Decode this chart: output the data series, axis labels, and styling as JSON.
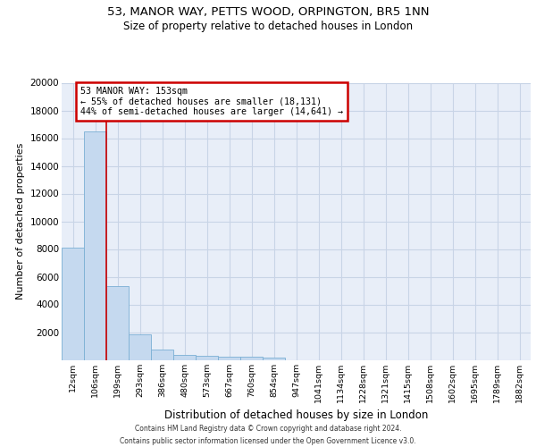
{
  "title1": "53, MANOR WAY, PETTS WOOD, ORPINGTON, BR5 1NN",
  "title2": "Size of property relative to detached houses in London",
  "xlabel": "Distribution of detached houses by size in London",
  "ylabel": "Number of detached properties",
  "bar_labels": [
    "12sqm",
    "106sqm",
    "199sqm",
    "293sqm",
    "386sqm",
    "480sqm",
    "573sqm",
    "667sqm",
    "760sqm",
    "854sqm",
    "947sqm",
    "1041sqm",
    "1134sqm",
    "1228sqm",
    "1321sqm",
    "1415sqm",
    "1508sqm",
    "1602sqm",
    "1695sqm",
    "1789sqm",
    "1882sqm"
  ],
  "bar_values": [
    8100,
    16500,
    5300,
    1850,
    750,
    380,
    300,
    250,
    220,
    160,
    0,
    0,
    0,
    0,
    0,
    0,
    0,
    0,
    0,
    0,
    0
  ],
  "bar_color": "#c5d9ef",
  "bar_edge_color": "#7bafd4",
  "grid_color": "#c8d4e6",
  "background_color": "#e8eef8",
  "red_line_x": 1.5,
  "annotation_title": "53 MANOR WAY: 153sqm",
  "annotation_line1": "← 55% of detached houses are smaller (18,131)",
  "annotation_line2": "44% of semi-detached houses are larger (14,641) →",
  "annotation_box_color": "#ffffff",
  "annotation_border_color": "#cc0000",
  "red_line_color": "#cc0000",
  "footer1": "Contains HM Land Registry data © Crown copyright and database right 2024.",
  "footer2": "Contains public sector information licensed under the Open Government Licence v3.0.",
  "ylim": [
    0,
    20000
  ],
  "yticks": [
    0,
    2000,
    4000,
    6000,
    8000,
    10000,
    12000,
    14000,
    16000,
    18000,
    20000
  ]
}
